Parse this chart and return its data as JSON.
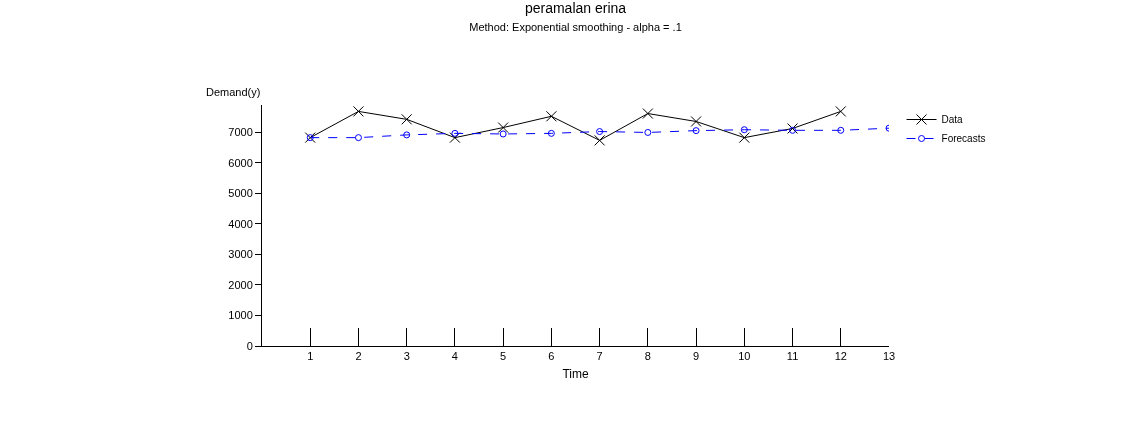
{
  "chart_data": {
    "type": "line",
    "title": "peramalan erina",
    "subtitle": "Method: Exponential smoothing - alpha = .1",
    "xlabel": "Time",
    "ylabel": "Demand(y)",
    "x": [
      1,
      2,
      3,
      4,
      5,
      6,
      7,
      8,
      9,
      10,
      11,
      12,
      13
    ],
    "series": [
      {
        "name": "Data",
        "color": "#000000",
        "marker": "cross",
        "line_style": "solid",
        "values": [
          6830,
          7690,
          7430,
          6830,
          7160,
          7530,
          6740,
          7620,
          7360,
          6830,
          7130,
          7690,
          null
        ]
      },
      {
        "name": "Forecasts",
        "color": "#0000ff",
        "marker": "circle",
        "line_style": "dashed",
        "values": [
          6830,
          6830,
          6920,
          6970,
          6950,
          6970,
          7030,
          7000,
          7060,
          7090,
          7070,
          7070,
          7140
        ]
      }
    ],
    "xlim": [
      0,
      13
    ],
    "xticks": [
      1,
      2,
      3,
      4,
      5,
      6,
      7,
      8,
      9,
      10,
      11,
      12,
      13
    ],
    "ylim": [
      0,
      7900
    ],
    "yticks": [
      0,
      1000,
      2000,
      3000,
      4000,
      5000,
      6000,
      7000
    ],
    "grid": false,
    "legend": "right"
  }
}
